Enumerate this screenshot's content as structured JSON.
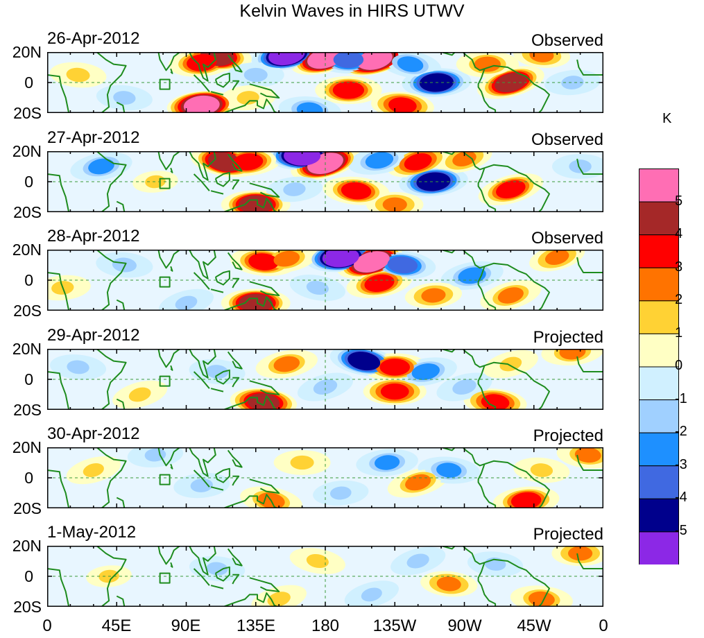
{
  "chart_data": {
    "type": "heatmap",
    "title": "Kelvin Waves in HIRS UTWV",
    "xlabel": "",
    "ylabel": "",
    "xlim": [
      0,
      360
    ],
    "ylim": [
      -20,
      20
    ],
    "x_tick_labels": [
      "0",
      "45E",
      "90E",
      "135E",
      "180",
      "135W",
      "90W",
      "45W",
      "0"
    ],
    "y_tick_labels": [
      "20N",
      "0",
      "20S"
    ],
    "colorbar": {
      "unit": "K",
      "levels": [
        "5",
        "4",
        "3",
        "2",
        "1",
        "0",
        "-1",
        "-2",
        "-3",
        "-4",
        "-5"
      ],
      "colors": [
        "#ff6eb4",
        "#a52828",
        "#ff0000",
        "#ff7300",
        "#ffd234",
        "#ffffc4",
        "#d0f0ff",
        "#a0d0ff",
        "#1e90ff",
        "#4069e1",
        "#00008c",
        "#8c28e6"
      ]
    },
    "panels": [
      {
        "date": "26-Apr-2012",
        "status": "Observed",
        "features": [
          {
            "lon": 100,
            "lat": 13,
            "value": 3.5
          },
          {
            "lon": 110,
            "lat": 17,
            "value": 4.5
          },
          {
            "lon": 135,
            "lat": 5,
            "value": -1.8
          },
          {
            "lon": 155,
            "lat": 18,
            "value": -5.2
          },
          {
            "lon": 180,
            "lat": 16,
            "value": 5.2
          },
          {
            "lon": 195,
            "lat": 15,
            "value": -3.5
          },
          {
            "lon": 212,
            "lat": 15,
            "value": 5
          },
          {
            "lon": 235,
            "lat": 12,
            "value": -2.5
          },
          {
            "lon": 252,
            "lat": 0,
            "value": -4.5
          },
          {
            "lon": 300,
            "lat": 0,
            "value": 4.2
          },
          {
            "lon": 100,
            "lat": -15,
            "value": 5
          },
          {
            "lon": 130,
            "lat": -10,
            "value": 1.5
          },
          {
            "lon": 195,
            "lat": -5,
            "value": 3.8
          },
          {
            "lon": 230,
            "lat": -15,
            "value": 3
          },
          {
            "lon": 285,
            "lat": 12,
            "value": 2.5
          },
          {
            "lon": 20,
            "lat": 5,
            "value": 1.8
          },
          {
            "lon": 50,
            "lat": -10,
            "value": -1.5
          },
          {
            "lon": 340,
            "lat": 0,
            "value": -1.5
          },
          {
            "lon": 170,
            "lat": -18,
            "value": -2.5
          },
          {
            "lon": 320,
            "lat": 18,
            "value": 2
          }
        ]
      },
      {
        "date": "27-Apr-2012",
        "status": "Observed",
        "features": [
          {
            "lon": 115,
            "lat": 13,
            "value": 4.5
          },
          {
            "lon": 130,
            "lat": 13,
            "value": 3.5
          },
          {
            "lon": 165,
            "lat": 17,
            "value": -5.2
          },
          {
            "lon": 180,
            "lat": 12,
            "value": 5.2
          },
          {
            "lon": 215,
            "lat": 14,
            "value": -3
          },
          {
            "lon": 240,
            "lat": 13,
            "value": 3
          },
          {
            "lon": 250,
            "lat": 0,
            "value": -4.5
          },
          {
            "lon": 200,
            "lat": -6,
            "value": 3.5
          },
          {
            "lon": 135,
            "lat": -15,
            "value": 4.5
          },
          {
            "lon": 300,
            "lat": -5,
            "value": 3.5
          },
          {
            "lon": 35,
            "lat": 10,
            "value": -2.5
          },
          {
            "lon": 270,
            "lat": 15,
            "value": 2
          },
          {
            "lon": 225,
            "lat": -15,
            "value": 2
          },
          {
            "lon": 345,
            "lat": 10,
            "value": -1.5
          },
          {
            "lon": 70,
            "lat": 0,
            "value": 1
          },
          {
            "lon": 160,
            "lat": -5,
            "value": -1.5
          }
        ]
      },
      {
        "date": "28-Apr-2012",
        "status": "Observed",
        "features": [
          {
            "lon": 140,
            "lat": 12,
            "value": 3.5
          },
          {
            "lon": 155,
            "lat": 14,
            "value": 2.5
          },
          {
            "lon": 190,
            "lat": 15,
            "value": -5.2
          },
          {
            "lon": 210,
            "lat": 12,
            "value": 5.2
          },
          {
            "lon": 230,
            "lat": 10,
            "value": -3.5
          },
          {
            "lon": 215,
            "lat": -2,
            "value": 3.5
          },
          {
            "lon": 135,
            "lat": -15,
            "value": 4.5
          },
          {
            "lon": 275,
            "lat": 3,
            "value": -3
          },
          {
            "lon": 300,
            "lat": -10,
            "value": 2.5
          },
          {
            "lon": 330,
            "lat": 15,
            "value": 2
          },
          {
            "lon": 50,
            "lat": 10,
            "value": -2
          },
          {
            "lon": 90,
            "lat": -15,
            "value": -1.5
          },
          {
            "lon": 250,
            "lat": -10,
            "value": 2
          },
          {
            "lon": 175,
            "lat": -5,
            "value": -1.5
          },
          {
            "lon": 10,
            "lat": -5,
            "value": 1.5
          }
        ]
      },
      {
        "date": "29-Apr-2012",
        "status": "Projected",
        "features": [
          {
            "lon": 155,
            "lat": 10,
            "value": 2.5
          },
          {
            "lon": 140,
            "lat": -15,
            "value": 4
          },
          {
            "lon": 205,
            "lat": 12,
            "value": -4.2
          },
          {
            "lon": 225,
            "lat": 8,
            "value": 3.5
          },
          {
            "lon": 245,
            "lat": 5,
            "value": -3
          },
          {
            "lon": 225,
            "lat": -8,
            "value": 3
          },
          {
            "lon": 290,
            "lat": -15,
            "value": 3
          },
          {
            "lon": 300,
            "lat": 10,
            "value": 1.5
          },
          {
            "lon": 270,
            "lat": -5,
            "value": -2
          },
          {
            "lon": 20,
            "lat": 8,
            "value": -1.5
          },
          {
            "lon": 60,
            "lat": -10,
            "value": 1.5
          },
          {
            "lon": 340,
            "lat": 18,
            "value": 2.5
          },
          {
            "lon": 180,
            "lat": -5,
            "value": -2
          },
          {
            "lon": 110,
            "lat": 5,
            "value": -1.5
          }
        ]
      },
      {
        "date": "30-Apr-2012",
        "status": "Projected",
        "features": [
          {
            "lon": 165,
            "lat": 10,
            "value": 1.8
          },
          {
            "lon": 145,
            "lat": -15,
            "value": 2.8
          },
          {
            "lon": 220,
            "lat": 10,
            "value": -2.2
          },
          {
            "lon": 240,
            "lat": -3,
            "value": 2.5
          },
          {
            "lon": 260,
            "lat": 5,
            "value": -2.2
          },
          {
            "lon": 310,
            "lat": -15,
            "value": 3.5
          },
          {
            "lon": 320,
            "lat": 5,
            "value": 1.5
          },
          {
            "lon": 350,
            "lat": 15,
            "value": 2.5
          },
          {
            "lon": 30,
            "lat": 5,
            "value": 1.2
          },
          {
            "lon": 100,
            "lat": -5,
            "value": -1.5
          },
          {
            "lon": 190,
            "lat": -10,
            "value": -1.2
          },
          {
            "lon": 70,
            "lat": 15,
            "value": -1.2
          }
        ]
      },
      {
        "date": "1-May-2012",
        "status": "Projected",
        "features": [
          {
            "lon": 175,
            "lat": 10,
            "value": 1.5
          },
          {
            "lon": 150,
            "lat": -15,
            "value": 1.8
          },
          {
            "lon": 240,
            "lat": 10,
            "value": -1.6
          },
          {
            "lon": 260,
            "lat": -5,
            "value": 2
          },
          {
            "lon": 320,
            "lat": -15,
            "value": 2.5
          },
          {
            "lon": 345,
            "lat": 15,
            "value": 2
          },
          {
            "lon": 40,
            "lat": 0,
            "value": 1
          },
          {
            "lon": 110,
            "lat": 5,
            "value": -1.2
          },
          {
            "lon": 210,
            "lat": -12,
            "value": -1.2
          },
          {
            "lon": 290,
            "lat": 8,
            "value": -1.2
          }
        ]
      }
    ]
  }
}
